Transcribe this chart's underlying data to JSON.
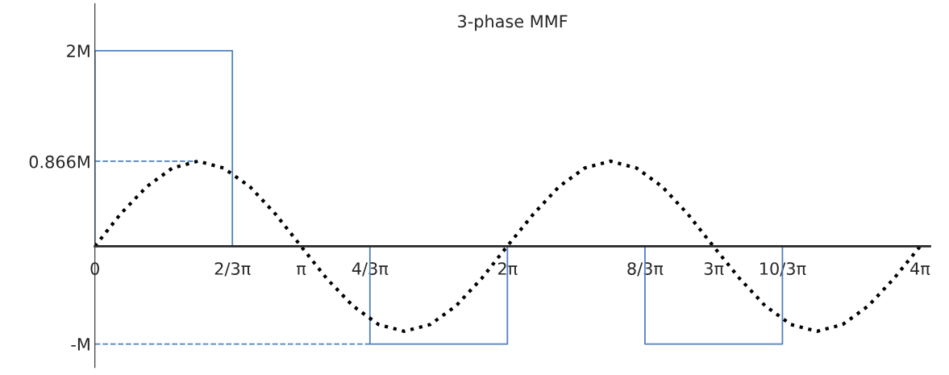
{
  "chart_data": {
    "type": "line",
    "title": "3-phase MMF",
    "xlim": [
      0,
      12.72
    ],
    "ylim": [
      -1.24,
      2.48
    ],
    "xticks": [
      {
        "value": 0,
        "label": "0"
      },
      {
        "value": 2.094,
        "label": "2/3π"
      },
      {
        "value": 3.142,
        "label": "π"
      },
      {
        "value": 4.189,
        "label": "4/3π"
      },
      {
        "value": 6.283,
        "label": "2π"
      },
      {
        "value": 8.378,
        "label": "8/3π"
      },
      {
        "value": 9.425,
        "label": "3π"
      },
      {
        "value": 10.472,
        "label": "10/3π"
      },
      {
        "value": 12.566,
        "label": "4π"
      }
    ],
    "yticks": [
      {
        "value": 2,
        "label": "2M"
      },
      {
        "value": 0.866,
        "label": "0.866M"
      },
      {
        "value": -1,
        "label": "-M"
      }
    ],
    "grid": false,
    "marker": "none",
    "series": [
      {
        "color": "#4f81bd",
        "line_style": "solid",
        "x": [
          0,
          0,
          2.094,
          2.094,
          4.189,
          4.189,
          6.283,
          6.283,
          8.378,
          8.378,
          10.472,
          10.472,
          12.566
        ],
        "values": [
          0,
          2,
          2,
          0,
          0,
          -1,
          -1,
          0,
          0,
          -1,
          -1,
          0,
          0
        ]
      },
      {
        "color": "#4f81bd",
        "line_style": "dashed",
        "x": [
          0,
          1.57
        ],
        "values": [
          0.87,
          0.87
        ]
      },
      {
        "color": "#4f81bd",
        "line_style": "dashed",
        "x": [
          0,
          4.189
        ],
        "values": [
          -1,
          -1
        ]
      },
      {
        "color": "#000000",
        "line_style": "dotted",
        "x": [
          0,
          0.39,
          0.79,
          1.18,
          1.57,
          1.96,
          2.36,
          2.75,
          3.14,
          3.53,
          3.93,
          4.32,
          4.71,
          5.11,
          5.5,
          5.89,
          6.28,
          6.68,
          7.07,
          7.46,
          7.85,
          8.25,
          8.64,
          9.03,
          9.42,
          9.82,
          10.21,
          10.6,
          11.0,
          11.39,
          11.78,
          12.17,
          12.57
        ],
        "values": [
          0,
          0.33,
          0.61,
          0.8,
          0.87,
          0.8,
          0.61,
          0.33,
          0,
          -0.33,
          -0.61,
          -0.8,
          -0.87,
          -0.8,
          -0.61,
          -0.33,
          0,
          0.33,
          0.61,
          0.8,
          0.87,
          0.8,
          0.61,
          0.33,
          0,
          -0.33,
          -0.61,
          -0.8,
          -0.87,
          -0.8,
          -0.61,
          -0.33,
          0
        ]
      }
    ]
  }
}
